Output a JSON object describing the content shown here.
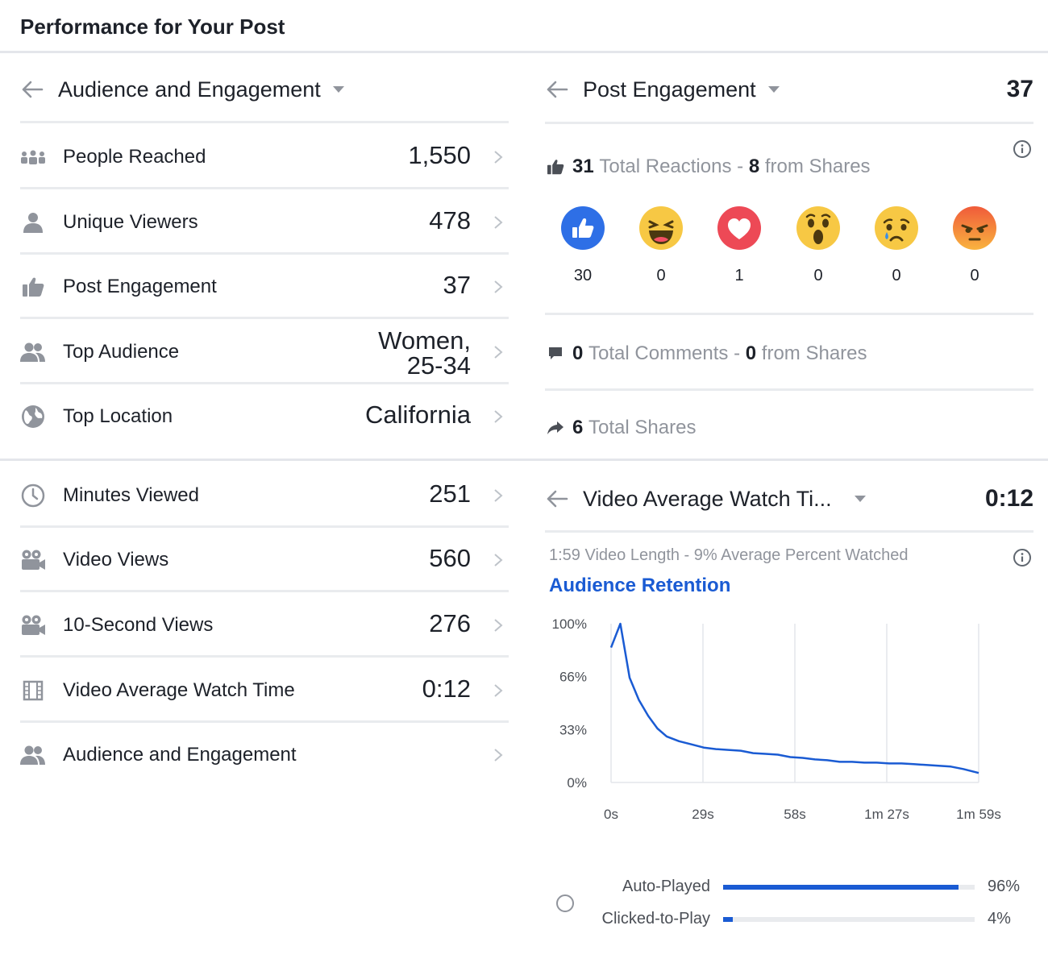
{
  "page_title": "Performance for Your Post",
  "audience_panel": {
    "title": "Audience and Engagement",
    "metrics_top": [
      {
        "icon": "people-reached-icon",
        "label": "People Reached",
        "value": "1,550"
      },
      {
        "icon": "person-icon",
        "label": "Unique Viewers",
        "value": "478"
      },
      {
        "icon": "thumbs-up-icon",
        "label": "Post Engagement",
        "value": "37"
      },
      {
        "icon": "people-icon",
        "label": "Top Audience",
        "value_line1": "Women,",
        "value_line2": "25-34"
      },
      {
        "icon": "globe-icon",
        "label": "Top Location",
        "value": "California"
      }
    ],
    "metrics_bottom": [
      {
        "icon": "clock-icon",
        "label": "Minutes Viewed",
        "value": "251"
      },
      {
        "icon": "video-camera-icon",
        "label": "Video Views",
        "value": "560"
      },
      {
        "icon": "video-camera-icon",
        "label": "10-Second Views",
        "value": "276"
      },
      {
        "icon": "film-icon",
        "label": "Video Average Watch Time",
        "value": "0:12"
      },
      {
        "icon": "people-icon",
        "label": "Audience and Engagement",
        "value": ""
      }
    ]
  },
  "engagement_panel": {
    "title": "Post Engagement",
    "value": "37",
    "reactions": {
      "total": "31",
      "total_label": "Total Reactions",
      "separator": "-",
      "from_shares": "8",
      "from_shares_label": "from Shares",
      "items": [
        {
          "icon": "like-reaction-icon",
          "count": "30",
          "color": "#2e6fe6"
        },
        {
          "icon": "haha-reaction-icon",
          "count": "0",
          "color": "#f7c844"
        },
        {
          "icon": "love-reaction-icon",
          "count": "1",
          "color": "#ed4956"
        },
        {
          "icon": "wow-reaction-icon",
          "count": "0",
          "color": "#f7c844"
        },
        {
          "icon": "sad-reaction-icon",
          "count": "0",
          "color": "#f7c844"
        },
        {
          "icon": "angry-reaction-icon",
          "count": "0",
          "color": "#f0813a"
        }
      ]
    },
    "comments": {
      "total": "0",
      "total_label": "Total Comments",
      "separator": "-",
      "from_shares": "0",
      "from_shares_label": "from Shares"
    },
    "shares": {
      "total": "6",
      "total_label": "Total Shares"
    }
  },
  "watch_time_panel": {
    "title": "Video Average Watch Ti...",
    "value": "0:12",
    "subtitle": "1:59 Video Length - 9% Average Percent Watched",
    "chart_title": "Audience Retention",
    "play_breakdown": [
      {
        "label": "Auto-Played",
        "percent": 96,
        "percent_text": "96%"
      },
      {
        "label": "Clicked-to-Play",
        "percent": 4,
        "percent_text": "4%"
      }
    ]
  },
  "chart_data": {
    "type": "line",
    "title": "Audience Retention",
    "x_tick_labels": [
      "0s",
      "29s",
      "58s",
      "1m 27s",
      "1m 59s"
    ],
    "y_tick_labels": [
      "100%",
      "66%",
      "33%",
      "0%"
    ],
    "xlim": [
      0,
      119
    ],
    "ylim": [
      0,
      100
    ],
    "grid": true,
    "series": [
      {
        "color": "#1a5bd3",
        "x": [
          0,
          3,
          6,
          9,
          12,
          15,
          18,
          22,
          26,
          30,
          34,
          38,
          42,
          46,
          50,
          54,
          58,
          62,
          66,
          70,
          74,
          78,
          82,
          86,
          90,
          94,
          98,
          102,
          106,
          110,
          114,
          119
        ],
        "y": [
          85,
          100,
          66,
          52,
          42,
          34,
          29,
          26,
          24,
          22,
          21,
          20.5,
          20,
          18.5,
          18,
          17.5,
          16,
          15.5,
          14.5,
          14,
          13,
          13,
          12.5,
          12.5,
          12,
          12,
          11.5,
          11,
          10.5,
          10,
          8.5,
          6
        ]
      }
    ]
  },
  "colors": {
    "accent": "#1a5bd3",
    "text": "#1d2129",
    "muted": "#90949c",
    "divider": "#e9ebee"
  }
}
